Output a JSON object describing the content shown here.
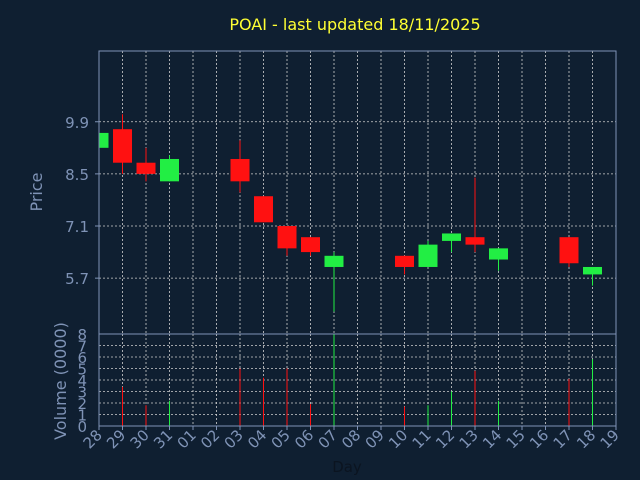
{
  "chart_data": {
    "type": "candlestick",
    "title": "POAI - last updated 18/11/2025",
    "xlabel": "Day",
    "price_panel": {
      "ylabel": "Price",
      "yticks": [
        5.7,
        7.1,
        8.5,
        9.9
      ],
      "ytick_labels": [
        "5.7",
        "7.1",
        "8.5",
        "9.9"
      ],
      "ylim": [
        4.2,
        11.8
      ]
    },
    "volume_panel": {
      "ylabel": "Volume (0000)",
      "yticks": [
        0,
        1,
        2,
        3,
        4,
        5,
        6,
        7,
        8
      ],
      "ytick_labels": [
        "0",
        "1",
        "2",
        "3",
        "4",
        "5",
        "6",
        "7",
        "8"
      ],
      "ylim": [
        0,
        8
      ]
    },
    "x_ticks": [
      "28",
      "29",
      "30",
      "31",
      "01",
      "02",
      "03",
      "04",
      "05",
      "06",
      "07",
      "08",
      "09",
      "10",
      "11",
      "12",
      "13",
      "14",
      "15",
      "16",
      "17",
      "18",
      "19"
    ],
    "grid": true,
    "colors": {
      "background": "#0f1f31",
      "axis": "#7f93b6",
      "title": "#ffff33",
      "up": "#22ee44",
      "down": "#ff1111",
      "grid": "#d0d0d0"
    },
    "candles": [
      {
        "day": "28",
        "open": 9.2,
        "close": 9.6,
        "high": 9.6,
        "low": 9.2,
        "volume": 0
      },
      {
        "day": "29",
        "open": 9.7,
        "close": 8.8,
        "high": 10.1,
        "low": 8.5,
        "volume": 3.4
      },
      {
        "day": "30",
        "open": 8.8,
        "close": 8.5,
        "high": 9.2,
        "low": 8.3,
        "volume": 1.8
      },
      {
        "day": "31",
        "open": 8.3,
        "close": 8.9,
        "high": 9.0,
        "low": 8.3,
        "volume": 2.2
      },
      {
        "day": "03",
        "open": 8.9,
        "close": 8.3,
        "high": 9.4,
        "low": 8.0,
        "volume": 5.0
      },
      {
        "day": "04",
        "open": 7.9,
        "close": 7.2,
        "high": 7.9,
        "low": 7.2,
        "volume": 4.2
      },
      {
        "day": "05",
        "open": 7.1,
        "close": 6.5,
        "high": 7.1,
        "low": 6.3,
        "volume": 5.0
      },
      {
        "day": "06",
        "open": 6.8,
        "close": 6.4,
        "high": 6.8,
        "low": 6.3,
        "volume": 1.9
      },
      {
        "day": "07",
        "open": 6.0,
        "close": 6.3,
        "high": 6.4,
        "low": 4.8,
        "volume": 8.0
      },
      {
        "day": "10",
        "open": 6.3,
        "close": 6.0,
        "high": 6.3,
        "low": 5.8,
        "volume": 1.7
      },
      {
        "day": "11",
        "open": 6.0,
        "close": 6.6,
        "high": 6.7,
        "low": 6.0,
        "volume": 1.8
      },
      {
        "day": "12",
        "open": 6.7,
        "close": 6.9,
        "high": 6.9,
        "low": 6.4,
        "volume": 3.0
      },
      {
        "day": "13",
        "open": 6.8,
        "close": 6.6,
        "high": 8.4,
        "low": 6.4,
        "volume": 4.8
      },
      {
        "day": "14",
        "open": 6.2,
        "close": 6.5,
        "high": 6.5,
        "low": 5.9,
        "volume": 2.2
      },
      {
        "day": "17",
        "open": 6.8,
        "close": 6.1,
        "high": 6.8,
        "low": 6.0,
        "volume": 4.1
      },
      {
        "day": "18",
        "open": 5.8,
        "close": 6.0,
        "high": 6.0,
        "low": 5.5,
        "volume": 5.8
      }
    ]
  }
}
